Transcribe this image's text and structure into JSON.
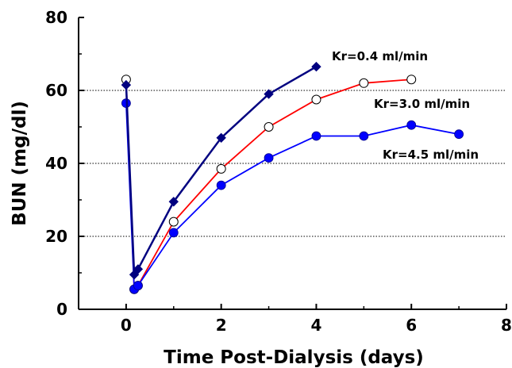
{
  "chart_data": {
    "type": "line",
    "title": "",
    "xlabel": "Time Post-Dialysis (days)",
    "ylabel": "BUN (mg/dl)",
    "xlim": [
      -1,
      8
    ],
    "ylim": [
      0,
      80
    ],
    "xticks": [
      0,
      2,
      4,
      6,
      8
    ],
    "yticks": [
      0,
      20,
      40,
      60,
      80
    ],
    "grid": "horizontal dotted at 20, 40, 60",
    "legend": "direct labels near series ends",
    "series": [
      {
        "name": "Kr=0.4 ml/min",
        "color": "#000080",
        "marker": "diamond",
        "x": [
          0,
          0.17,
          0.25,
          1,
          2,
          3,
          4
        ],
        "y": [
          61.5,
          9.5,
          11,
          29.5,
          47,
          59,
          66.5
        ]
      },
      {
        "name": "Kr=3.0 ml/min",
        "color": "#ff0000",
        "marker": "open-circle",
        "x": [
          0,
          0.17,
          0.25,
          1,
          2,
          3,
          4,
          5,
          6
        ],
        "y": [
          63,
          5.5,
          6.5,
          24,
          38.5,
          50,
          57.5,
          62,
          63
        ]
      },
      {
        "name": "Kr=4.5 ml/min",
        "color": "#0000ff",
        "marker": "filled-circle",
        "x": [
          0,
          0.17,
          0.25,
          1,
          2,
          3,
          4,
          5,
          6,
          7
        ],
        "y": [
          56.5,
          5.5,
          6.5,
          21,
          34,
          41.5,
          47.5,
          47.5,
          50.5,
          48
        ]
      }
    ]
  }
}
